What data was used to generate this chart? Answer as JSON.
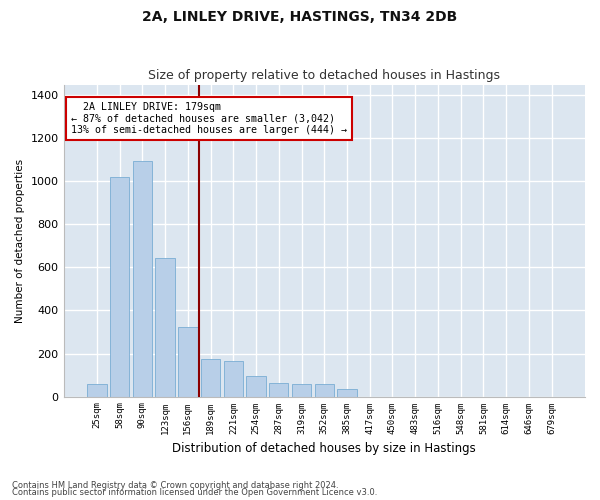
{
  "title": "2A, LINLEY DRIVE, HASTINGS, TN34 2DB",
  "subtitle": "Size of property relative to detached houses in Hastings",
  "xlabel": "Distribution of detached houses by size in Hastings",
  "ylabel": "Number of detached properties",
  "footnote1": "Contains HM Land Registry data © Crown copyright and database right 2024.",
  "footnote2": "Contains public sector information licensed under the Open Government Licence v3.0.",
  "categories": [
    "25sqm",
    "58sqm",
    "90sqm",
    "123sqm",
    "156sqm",
    "189sqm",
    "221sqm",
    "254sqm",
    "287sqm",
    "319sqm",
    "352sqm",
    "385sqm",
    "417sqm",
    "450sqm",
    "483sqm",
    "516sqm",
    "548sqm",
    "581sqm",
    "614sqm",
    "646sqm",
    "679sqm"
  ],
  "values": [
    60,
    1020,
    1095,
    645,
    325,
    175,
    165,
    95,
    65,
    60,
    60,
    35,
    0,
    0,
    0,
    0,
    0,
    0,
    0,
    0,
    0
  ],
  "bar_color": "#b8cfe8",
  "bar_edge_color": "#7aadd4",
  "vline_color": "#8b0000",
  "ylim": [
    0,
    1450
  ],
  "yticks": [
    0,
    200,
    400,
    600,
    800,
    1000,
    1200,
    1400
  ],
  "annotation_text": "  2A LINLEY DRIVE: 179sqm\n← 87% of detached houses are smaller (3,042)\n13% of semi-detached houses are larger (444) →",
  "annotation_box_facecolor": "#ffffff",
  "annotation_box_edgecolor": "#cc0000",
  "fig_facecolor": "#ffffff",
  "plot_facecolor": "#dce6f0",
  "grid_color": "#ffffff",
  "title_fontsize": 10,
  "subtitle_fontsize": 9
}
